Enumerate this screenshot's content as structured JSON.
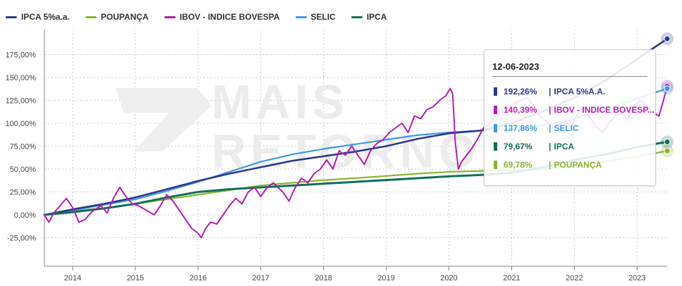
{
  "chart_data": {
    "type": "line",
    "x_labels": [
      "2014",
      "2015",
      "2016",
      "2017",
      "2018",
      "2019",
      "2020",
      "2021",
      "2022",
      "2023"
    ],
    "y_ticks": [
      "175,00%",
      "150,00%",
      "125,00%",
      "100,00%",
      "75,00%",
      "50,00%",
      "25,00%",
      "0,00%",
      "-25,00%"
    ],
    "y_tick_values": [
      175,
      150,
      125,
      100,
      75,
      50,
      25,
      0,
      -25
    ],
    "x_range": [
      2013.55,
      2023.48
    ],
    "y_range": [
      -25,
      190
    ],
    "grid": "dashed vertical and horizontal",
    "legend_position": "top-left",
    "watermark": "MAIS RETORNO",
    "series": [
      {
        "name": "IPCA 5%a.a.",
        "color": "#2e3a8c",
        "width": 2.6,
        "x": [
          2013.55,
          2014.0,
          2014.5,
          2015.0,
          2015.5,
          2016.0,
          2016.5,
          2017.0,
          2017.5,
          2018.0,
          2018.5,
          2019.0,
          2019.5,
          2020.0,
          2020.5,
          2021.0,
          2021.5,
          2022.0,
          2022.5,
          2023.0,
          2023.48
        ],
        "y": [
          0,
          6,
          12,
          19,
          28,
          37,
          45,
          52,
          59,
          64,
          69,
          75,
          83,
          89,
          92,
          100,
          113,
          128,
          147,
          170,
          192.26
        ]
      },
      {
        "name": "POUPANÇA",
        "color": "#8bb432",
        "width": 2.2,
        "x": [
          2013.55,
          2014.0,
          2014.5,
          2015.0,
          2015.5,
          2016.0,
          2016.5,
          2017.0,
          2017.5,
          2018.0,
          2018.5,
          2019.0,
          2019.5,
          2020.0,
          2020.5,
          2021.0,
          2021.5,
          2022.0,
          2022.5,
          2023.0,
          2023.48
        ],
        "y": [
          0,
          4,
          7.5,
          12,
          17,
          22,
          27,
          32,
          35,
          38,
          40,
          42.5,
          45,
          47,
          48,
          48.5,
          50,
          53,
          58,
          64,
          69.78
        ]
      },
      {
        "name": "IBOV - INDICE BOVESPA",
        "color": "#b41eb4",
        "width": 2.0,
        "x": [
          2013.55,
          2013.62,
          2013.7,
          2013.8,
          2013.9,
          2014.0,
          2014.1,
          2014.2,
          2014.3,
          2014.45,
          2014.55,
          2014.65,
          2014.75,
          2014.85,
          2014.95,
          2015.05,
          2015.15,
          2015.3,
          2015.4,
          2015.5,
          2015.6,
          2015.7,
          2015.8,
          2015.9,
          2016.0,
          2016.05,
          2016.12,
          2016.2,
          2016.3,
          2016.4,
          2016.5,
          2016.6,
          2016.7,
          2016.8,
          2016.9,
          2017.0,
          2017.1,
          2017.2,
          2017.35,
          2017.45,
          2017.55,
          2017.65,
          2017.75,
          2017.85,
          2017.95,
          2018.05,
          2018.15,
          2018.25,
          2018.35,
          2018.45,
          2018.55,
          2018.65,
          2018.75,
          2018.85,
          2018.95,
          2019.05,
          2019.15,
          2019.25,
          2019.35,
          2019.45,
          2019.55,
          2019.65,
          2019.75,
          2019.85,
          2019.95,
          2020.02,
          2020.06,
          2020.1,
          2020.15,
          2020.2,
          2020.28,
          2020.36,
          2020.45,
          2020.55,
          2020.65,
          2020.75,
          2020.85,
          2020.95,
          2021.05,
          2021.15,
          2021.25,
          2021.35,
          2021.45,
          2021.55,
          2021.65,
          2021.75,
          2021.85,
          2021.95,
          2022.05,
          2022.15,
          2022.25,
          2022.35,
          2022.45,
          2022.55,
          2022.65,
          2022.75,
          2022.85,
          2022.95,
          2023.05,
          2023.15,
          2023.25,
          2023.35,
          2023.42,
          2023.48
        ],
        "y": [
          0,
          -8,
          2,
          10,
          18,
          8,
          -8,
          -5,
          3,
          10,
          2,
          18,
          30,
          20,
          12,
          10,
          6,
          0,
          10,
          22,
          15,
          5,
          -5,
          -15,
          -20,
          -25,
          -15,
          -8,
          -10,
          0,
          10,
          18,
          12,
          25,
          30,
          20,
          30,
          35,
          25,
          15,
          30,
          40,
          35,
          45,
          50,
          60,
          50,
          70,
          65,
          75,
          65,
          55,
          70,
          78,
          82,
          90,
          95,
          100,
          90,
          108,
          105,
          115,
          118,
          125,
          130,
          138,
          132,
          80,
          50,
          58,
          65,
          72,
          82,
          95,
          100,
          108,
          112,
          118,
          122,
          125,
          128,
          118,
          108,
          102,
          96,
          98,
          102,
          95,
          110,
          118,
          106,
          96,
          90,
          100,
          108,
          112,
          104,
          118,
          125,
          120,
          112,
          108,
          125,
          140.39
        ]
      },
      {
        "name": "SELIC",
        "color": "#3f9ae6",
        "width": 2.2,
        "x": [
          2013.55,
          2014.0,
          2014.5,
          2015.0,
          2015.5,
          2016.0,
          2016.5,
          2017.0,
          2017.5,
          2018.0,
          2018.5,
          2019.0,
          2019.5,
          2020.0,
          2020.5,
          2021.0,
          2021.5,
          2022.0,
          2022.5,
          2023.0,
          2023.48
        ],
        "y": [
          0,
          5,
          11,
          17,
          26,
          36,
          47,
          58,
          66,
          72,
          77,
          82,
          87,
          90,
          92,
          94,
          98,
          105,
          115,
          127,
          137.86
        ]
      },
      {
        "name": "IPCA",
        "color": "#126e5a",
        "width": 3.0,
        "x": [
          2013.55,
          2014.0,
          2014.5,
          2015.0,
          2015.5,
          2016.0,
          2016.5,
          2017.0,
          2017.5,
          2018.0,
          2018.5,
          2019.0,
          2019.5,
          2020.0,
          2020.5,
          2021.0,
          2021.5,
          2022.0,
          2022.5,
          2023.0,
          2023.48
        ],
        "y": [
          0,
          3,
          7,
          12,
          19,
          25,
          28,
          30,
          32,
          34,
          36,
          38,
          40,
          42,
          43.5,
          46,
          52,
          60,
          66,
          74,
          79.67
        ]
      }
    ]
  },
  "legend": [
    {
      "label": "IPCA 5%a.a.",
      "color": "#2e3a8c"
    },
    {
      "label": "POUPANÇA",
      "color": "#8bb432"
    },
    {
      "label": "IBOV - INDICE BOVESPA",
      "color": "#b41eb4"
    },
    {
      "label": "SELIC",
      "color": "#3f9ae6"
    },
    {
      "label": "IPCA",
      "color": "#126e5a"
    }
  ],
  "tooltip": {
    "date": "12-06-2023",
    "rows": [
      {
        "value": "192,26%",
        "label": "IPCA 5%A.A.",
        "color": "#2e3a8c"
      },
      {
        "value": "140,39%",
        "label": "IBOV - INDICE BOVESP...",
        "color": "#b41eb4"
      },
      {
        "value": "137,86%",
        "label": "SELIC",
        "color": "#3f9ae6"
      },
      {
        "value": "79,67%",
        "label": "IPCA",
        "color": "#126e5a"
      },
      {
        "value": "69,78%",
        "label": "POUPANÇA",
        "color": "#8bb432"
      }
    ]
  }
}
